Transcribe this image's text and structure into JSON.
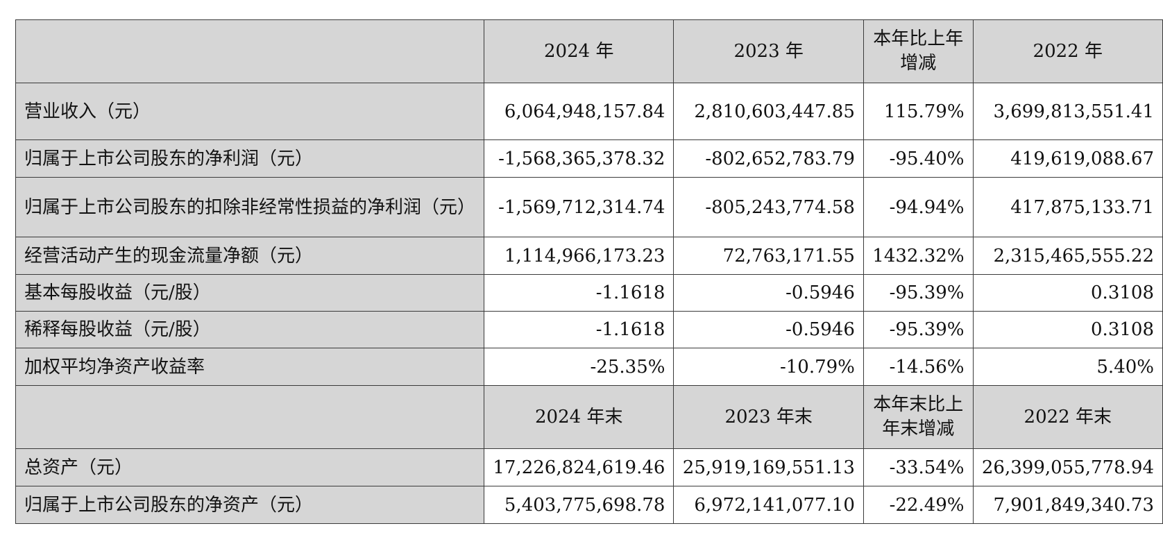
{
  "header_1": [
    "",
    "2024 年",
    "2023 年",
    "本年比上年增减",
    "2022 年"
  ],
  "rows_1": [
    {
      "label": "营业收入（元）",
      "v2024": "6,064,948,157.84",
      "v2023": "2,810,603,447.85",
      "change": "115.79%",
      "v2022": "3,699,813,551.41"
    },
    {
      "label": "归属于上市公司股东的净利润（元）",
      "v2024": "-1,568,365,378.32",
      "v2023": "-802,652,783.79",
      "change": "-95.40%",
      "v2022": "419,619,088.67"
    },
    {
      "label": "归属于上市公司股东的扣除非经常性损益的净利润（元）",
      "v2024": "-1,569,712,314.74",
      "v2023": "-805,243,774.58",
      "change": "-94.94%",
      "v2022": "417,875,133.71"
    },
    {
      "label": "经营活动产生的现金流量净额（元）",
      "v2024": "1,114,966,173.23",
      "v2023": "72,763,171.55",
      "change": "1432.32%",
      "v2022": "2,315,465,555.22"
    },
    {
      "label": "基本每股收益（元/股）",
      "v2024": "-1.1618",
      "v2023": "-0.5946",
      "change": "-95.39%",
      "v2022": "0.3108"
    },
    {
      "label": "稀释每股收益（元/股）",
      "v2024": "-1.1618",
      "v2023": "-0.5946",
      "change": "-95.39%",
      "v2022": "0.3108"
    },
    {
      "label": "加权平均净资产收益率",
      "v2024": "-25.35%",
      "v2023": "-10.79%",
      "change": "-14.56%",
      "v2022": "5.40%"
    }
  ],
  "header_2": [
    "",
    "2024 年末",
    "2023 年末",
    "本年末比上年末增减",
    "2022 年末"
  ],
  "rows_2": [
    {
      "label": "总资产（元）",
      "v2024": "17,226,824,619.46",
      "v2023": "25,919,169,551.13",
      "change": "-33.54%",
      "v2022": "26,399,055,778.94"
    },
    {
      "label": "归属于上市公司股东的净资产（元）",
      "v2024": "5,403,775,698.78",
      "v2023": "6,972,141,077.10",
      "change": "-22.49%",
      "v2022": "7,901,849,340.73"
    }
  ]
}
